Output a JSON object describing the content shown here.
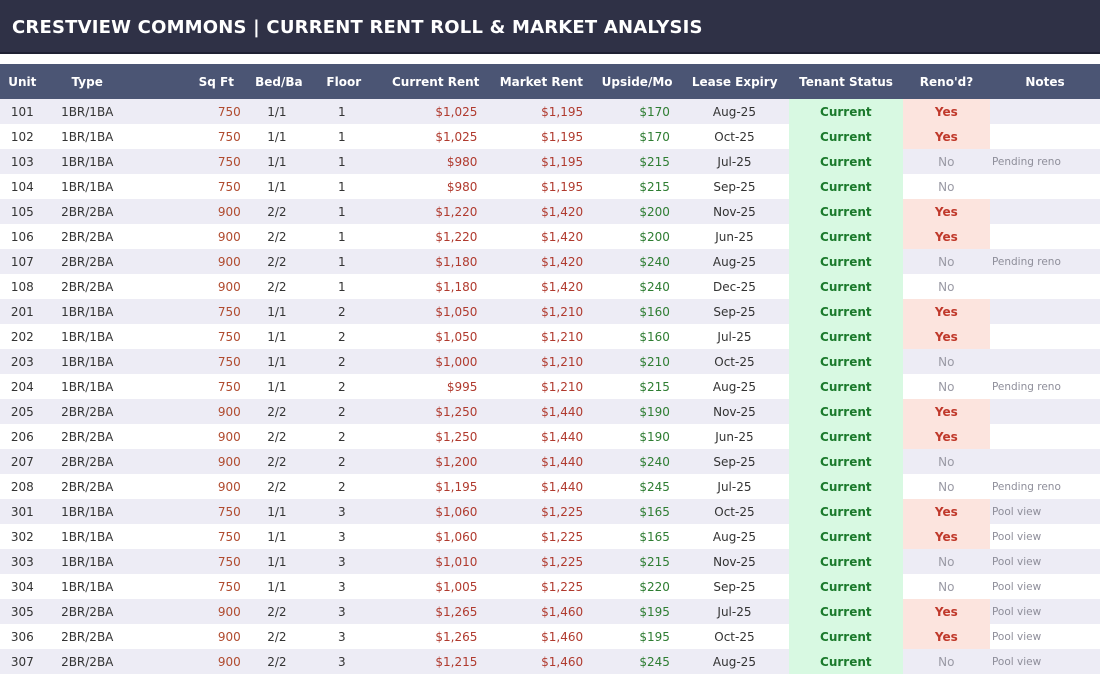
{
  "title": "CRESTVIEW COMMONS  |  CURRENT RENT ROLL & MARKET ANALYSIS",
  "columns": [
    "Unit",
    "Type",
    "Sq Ft",
    "Bed/Ba",
    "Floor",
    "Current Rent",
    "Market Rent",
    "Upside/Mo",
    "Lease Expiry",
    "Tenant Status",
    "Reno'd?",
    "Notes"
  ],
  "rows": [
    {
      "unit": "101",
      "type": "1BR/1BA",
      "sqft": "750",
      "bedba": "1/1",
      "floor": "1",
      "rent": "$1,025",
      "market": "$1,195",
      "upside": "$170",
      "expiry": "Aug-25",
      "status": "Current",
      "reno": "Yes",
      "notes": ""
    },
    {
      "unit": "102",
      "type": "1BR/1BA",
      "sqft": "750",
      "bedba": "1/1",
      "floor": "1",
      "rent": "$1,025",
      "market": "$1,195",
      "upside": "$170",
      "expiry": "Oct-25",
      "status": "Current",
      "reno": "Yes",
      "notes": ""
    },
    {
      "unit": "103",
      "type": "1BR/1BA",
      "sqft": "750",
      "bedba": "1/1",
      "floor": "1",
      "rent": "$980",
      "market": "$1,195",
      "upside": "$215",
      "expiry": "Jul-25",
      "status": "Current",
      "reno": "No",
      "notes": "Pending reno"
    },
    {
      "unit": "104",
      "type": "1BR/1BA",
      "sqft": "750",
      "bedba": "1/1",
      "floor": "1",
      "rent": "$980",
      "market": "$1,195",
      "upside": "$215",
      "expiry": "Sep-25",
      "status": "Current",
      "reno": "No",
      "notes": ""
    },
    {
      "unit": "105",
      "type": "2BR/2BA",
      "sqft": "900",
      "bedba": "2/2",
      "floor": "1",
      "rent": "$1,220",
      "market": "$1,420",
      "upside": "$200",
      "expiry": "Nov-25",
      "status": "Current",
      "reno": "Yes",
      "notes": ""
    },
    {
      "unit": "106",
      "type": "2BR/2BA",
      "sqft": "900",
      "bedba": "2/2",
      "floor": "1",
      "rent": "$1,220",
      "market": "$1,420",
      "upside": "$200",
      "expiry": "Jun-25",
      "status": "Current",
      "reno": "Yes",
      "notes": ""
    },
    {
      "unit": "107",
      "type": "2BR/2BA",
      "sqft": "900",
      "bedba": "2/2",
      "floor": "1",
      "rent": "$1,180",
      "market": "$1,420",
      "upside": "$240",
      "expiry": "Aug-25",
      "status": "Current",
      "reno": "No",
      "notes": "Pending reno"
    },
    {
      "unit": "108",
      "type": "2BR/2BA",
      "sqft": "900",
      "bedba": "2/2",
      "floor": "1",
      "rent": "$1,180",
      "market": "$1,420",
      "upside": "$240",
      "expiry": "Dec-25",
      "status": "Current",
      "reno": "No",
      "notes": ""
    },
    {
      "unit": "201",
      "type": "1BR/1BA",
      "sqft": "750",
      "bedba": "1/1",
      "floor": "2",
      "rent": "$1,050",
      "market": "$1,210",
      "upside": "$160",
      "expiry": "Sep-25",
      "status": "Current",
      "reno": "Yes",
      "notes": ""
    },
    {
      "unit": "202",
      "type": "1BR/1BA",
      "sqft": "750",
      "bedba": "1/1",
      "floor": "2",
      "rent": "$1,050",
      "market": "$1,210",
      "upside": "$160",
      "expiry": "Jul-25",
      "status": "Current",
      "reno": "Yes",
      "notes": ""
    },
    {
      "unit": "203",
      "type": "1BR/1BA",
      "sqft": "750",
      "bedba": "1/1",
      "floor": "2",
      "rent": "$1,000",
      "market": "$1,210",
      "upside": "$210",
      "expiry": "Oct-25",
      "status": "Current",
      "reno": "No",
      "notes": ""
    },
    {
      "unit": "204",
      "type": "1BR/1BA",
      "sqft": "750",
      "bedba": "1/1",
      "floor": "2",
      "rent": "$995",
      "market": "$1,210",
      "upside": "$215",
      "expiry": "Aug-25",
      "status": "Current",
      "reno": "No",
      "notes": "Pending reno"
    },
    {
      "unit": "205",
      "type": "2BR/2BA",
      "sqft": "900",
      "bedba": "2/2",
      "floor": "2",
      "rent": "$1,250",
      "market": "$1,440",
      "upside": "$190",
      "expiry": "Nov-25",
      "status": "Current",
      "reno": "Yes",
      "notes": ""
    },
    {
      "unit": "206",
      "type": "2BR/2BA",
      "sqft": "900",
      "bedba": "2/2",
      "floor": "2",
      "rent": "$1,250",
      "market": "$1,440",
      "upside": "$190",
      "expiry": "Jun-25",
      "status": "Current",
      "reno": "Yes",
      "notes": ""
    },
    {
      "unit": "207",
      "type": "2BR/2BA",
      "sqft": "900",
      "bedba": "2/2",
      "floor": "2",
      "rent": "$1,200",
      "market": "$1,440",
      "upside": "$240",
      "expiry": "Sep-25",
      "status": "Current",
      "reno": "No",
      "notes": ""
    },
    {
      "unit": "208",
      "type": "2BR/2BA",
      "sqft": "900",
      "bedba": "2/2",
      "floor": "2",
      "rent": "$1,195",
      "market": "$1,440",
      "upside": "$245",
      "expiry": "Jul-25",
      "status": "Current",
      "reno": "No",
      "notes": "Pending reno"
    },
    {
      "unit": "301",
      "type": "1BR/1BA",
      "sqft": "750",
      "bedba": "1/1",
      "floor": "3",
      "rent": "$1,060",
      "market": "$1,225",
      "upside": "$165",
      "expiry": "Oct-25",
      "status": "Current",
      "reno": "Yes",
      "notes": "Pool view"
    },
    {
      "unit": "302",
      "type": "1BR/1BA",
      "sqft": "750",
      "bedba": "1/1",
      "floor": "3",
      "rent": "$1,060",
      "market": "$1,225",
      "upside": "$165",
      "expiry": "Aug-25",
      "status": "Current",
      "reno": "Yes",
      "notes": "Pool view"
    },
    {
      "unit": "303",
      "type": "1BR/1BA",
      "sqft": "750",
      "bedba": "1/1",
      "floor": "3",
      "rent": "$1,010",
      "market": "$1,225",
      "upside": "$215",
      "expiry": "Nov-25",
      "status": "Current",
      "reno": "No",
      "notes": "Pool view"
    },
    {
      "unit": "304",
      "type": "1BR/1BA",
      "sqft": "750",
      "bedba": "1/1",
      "floor": "3",
      "rent": "$1,005",
      "market": "$1,225",
      "upside": "$220",
      "expiry": "Sep-25",
      "status": "Current",
      "reno": "No",
      "notes": "Pool view"
    },
    {
      "unit": "305",
      "type": "2BR/2BA",
      "sqft": "900",
      "bedba": "2/2",
      "floor": "3",
      "rent": "$1,265",
      "market": "$1,460",
      "upside": "$195",
      "expiry": "Jul-25",
      "status": "Current",
      "reno": "Yes",
      "notes": "Pool view"
    },
    {
      "unit": "306",
      "type": "2BR/2BA",
      "sqft": "900",
      "bedba": "2/2",
      "floor": "3",
      "rent": "$1,265",
      "market": "$1,460",
      "upside": "$195",
      "expiry": "Oct-25",
      "status": "Current",
      "reno": "Yes",
      "notes": "Pool view"
    },
    {
      "unit": "307",
      "type": "2BR/2BA",
      "sqft": "900",
      "bedba": "2/2",
      "floor": "3",
      "rent": "$1,215",
      "market": "$1,460",
      "upside": "$245",
      "expiry": "Aug-25",
      "status": "Current",
      "reno": "No",
      "notes": "Pool view"
    }
  ],
  "colors": {
    "title_bg": "#2f3146",
    "header_bg": "#4b5574",
    "band_row": "#edecf5",
    "status_bg": "#d8f9e2",
    "status_text": "#1b7a2c",
    "reno_yes_bg": "#fce4de",
    "reno_yes_text": "#c0392b",
    "rent_text": "#b03a2e",
    "upside_text": "#2e7d32"
  }
}
